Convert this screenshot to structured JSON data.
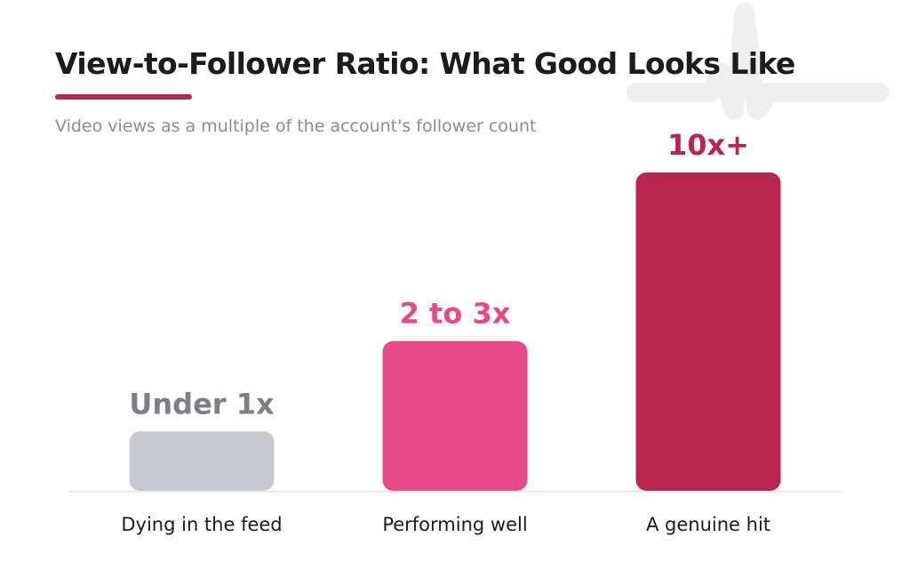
{
  "chart_data": {
    "type": "bar",
    "title": "View-to-Follower Ratio: What Good Looks Like",
    "subtitle": "Video views as a multiple of the account's follower count",
    "xlabel": "",
    "ylabel": "",
    "categories": [
      "Dying in the feed",
      "Performing well",
      "A genuine hit"
    ],
    "value_labels": [
      "Under 1x",
      "2 to 3x",
      "10x+"
    ],
    "values": [
      1,
      2.5,
      5.3
    ],
    "ylim": [
      0,
      5.3
    ],
    "grid": false,
    "legend": "none",
    "colors": [
      "#c7c8d0",
      "#e84a86",
      "#b8264f"
    ],
    "value_label_colors": [
      "#7e7e86",
      "#e84a86",
      "#b8264f"
    ]
  },
  "accent_color": "#b8264f",
  "watermark_color": "#efefef"
}
